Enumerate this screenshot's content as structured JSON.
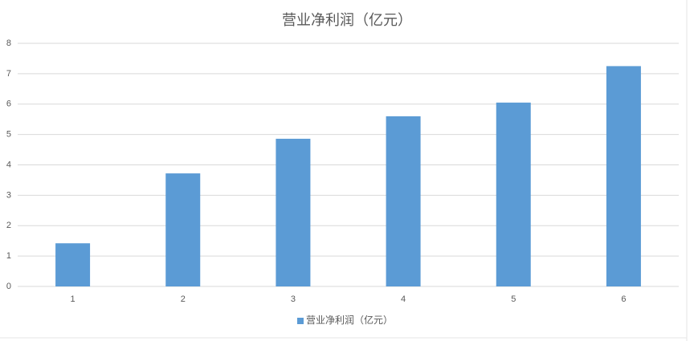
{
  "chart_data": {
    "type": "bar",
    "title": "营业净利润（亿元）",
    "categories": [
      "1",
      "2",
      "3",
      "4",
      "5",
      "6"
    ],
    "series": [
      {
        "name": "营业净利润（亿元）",
        "color": "#5b9bd5",
        "values": [
          1.42,
          3.72,
          4.86,
          5.6,
          6.05,
          7.25
        ]
      }
    ],
    "ylim": [
      0,
      8
    ],
    "yticks": [
      0,
      1,
      2,
      3,
      4,
      5,
      6,
      7,
      8
    ],
    "grid": true,
    "legend": "bottom"
  }
}
